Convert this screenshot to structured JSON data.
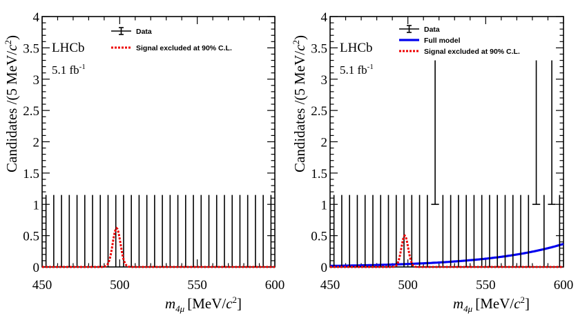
{
  "chart_data": [
    {
      "type": "histogram",
      "panel": "left",
      "experiment_label": "LHCb",
      "luminosity_label": "5.1 fb",
      "luminosity_exponent": "-1",
      "xlabel": "m",
      "xlabel_subscript": "4μ",
      "xlabel_units_prefix": "[MeV/",
      "xlabel_units_c": "c",
      "xlabel_units_exp": "2",
      "xlabel_units_suffix": "]",
      "ylabel": "Candidates /(5 MeV/",
      "ylabel_c": "c",
      "ylabel_exp": "2",
      "ylabel_suffix": ")",
      "xlim": [
        450,
        600
      ],
      "ylim": [
        0,
        4
      ],
      "xticks": [
        450,
        500,
        550,
        600
      ],
      "yticks": [
        0,
        0.5,
        1,
        1.5,
        2,
        2.5,
        3,
        3.5,
        4
      ],
      "legend": [
        {
          "label": "Data",
          "style": "errorbar",
          "color": "#000000"
        },
        {
          "label": "Signal excluded at 90% C.L.",
          "style": "dashed",
          "color": "#ee0000"
        }
      ],
      "data_points": {
        "bin_width": 5,
        "bin_centers": [
          452.5,
          457.5,
          462.5,
          467.5,
          472.5,
          477.5,
          482.5,
          487.5,
          492.5,
          497.5,
          502.5,
          507.5,
          512.5,
          517.5,
          522.5,
          527.5,
          532.5,
          537.5,
          542.5,
          547.5,
          552.5,
          557.5,
          562.5,
          567.5,
          572.5,
          577.5,
          582.5,
          587.5,
          592.5,
          597.5
        ],
        "counts": [
          0,
          0,
          0,
          0,
          0,
          0,
          0,
          0,
          0,
          0,
          0,
          0,
          0,
          0,
          0,
          0,
          0,
          0,
          0,
          0,
          0,
          0,
          0,
          0,
          0,
          0,
          0,
          0,
          0,
          0
        ],
        "error_up": 1.15
      },
      "signal": {
        "mean": 498,
        "sigma": 2.5,
        "peak": 0.62,
        "color": "#ee0000"
      },
      "full_model": null
    },
    {
      "type": "histogram",
      "panel": "right",
      "experiment_label": "LHCb",
      "luminosity_label": "5.1 fb",
      "luminosity_exponent": "-1",
      "xlabel": "m",
      "xlabel_subscript": "4μ",
      "xlabel_units_prefix": "[MeV/",
      "xlabel_units_c": "c",
      "xlabel_units_exp": "2",
      "xlabel_units_suffix": "]",
      "ylabel": "Candidates /(5 MeV/",
      "ylabel_c": "c",
      "ylabel_exp": "2",
      "ylabel_suffix": ")",
      "xlim": [
        450,
        600
      ],
      "ylim": [
        0,
        4
      ],
      "xticks": [
        450,
        500,
        550,
        600
      ],
      "yticks": [
        0,
        0.5,
        1,
        1.5,
        2,
        2.5,
        3,
        3.5,
        4
      ],
      "legend": [
        {
          "label": "Data",
          "style": "errorbar",
          "color": "#000000"
        },
        {
          "label": "Full model",
          "style": "solid",
          "color": "#0000ee"
        },
        {
          "label": "Signal excluded at 90% C.L.",
          "style": "dashed",
          "color": "#ee0000"
        }
      ],
      "data_points": {
        "bin_width": 5,
        "bin_centers": [
          452.5,
          457.5,
          462.5,
          467.5,
          472.5,
          477.5,
          482.5,
          487.5,
          492.5,
          497.5,
          502.5,
          507.5,
          512.5,
          517.5,
          522.5,
          527.5,
          532.5,
          537.5,
          542.5,
          547.5,
          552.5,
          557.5,
          562.5,
          567.5,
          572.5,
          577.5,
          582.5,
          587.5,
          592.5,
          597.5
        ],
        "counts": [
          0,
          0,
          0,
          0,
          0,
          0,
          0,
          0,
          0,
          0,
          0,
          0,
          0,
          1,
          0,
          0,
          0,
          0,
          0,
          0,
          0,
          0,
          0,
          0,
          0,
          0,
          1,
          0,
          1,
          0
        ],
        "error_up_zero": 1.15,
        "error_up_one": 3.3
      },
      "signal": {
        "mean": 498,
        "sigma": 2.2,
        "peak": 0.5,
        "color": "#ee0000"
      },
      "full_model": {
        "color": "#0000ee",
        "a": 0.017,
        "b": 0.0205,
        "x0": 450
      }
    }
  ]
}
